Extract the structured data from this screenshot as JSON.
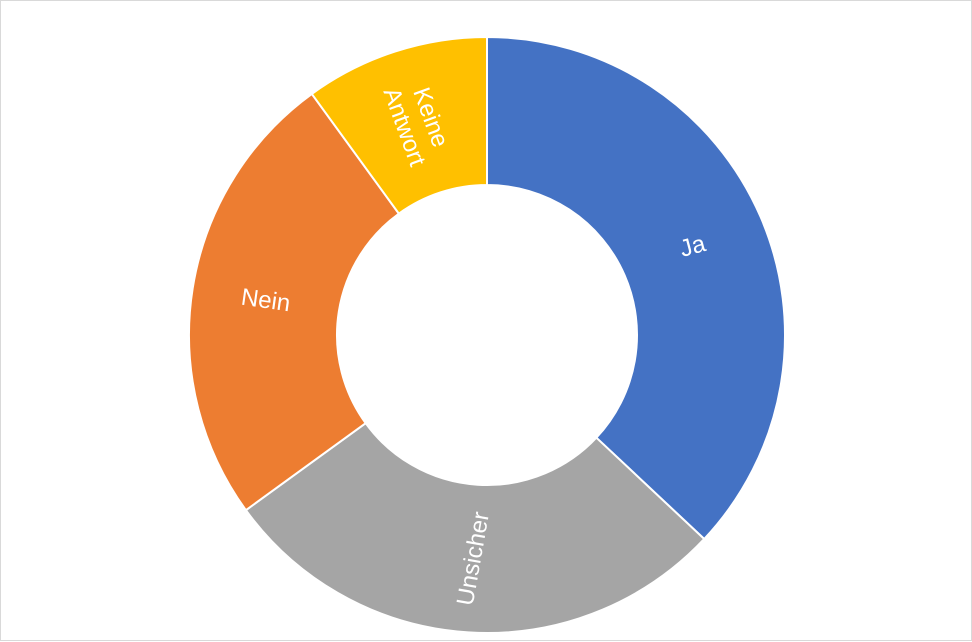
{
  "chart_data": {
    "type": "pie",
    "variant": "donut",
    "title": "",
    "legend": "none",
    "start_angle_deg": 0,
    "direction": "clockwise",
    "slices": [
      {
        "label": "Ja",
        "value": 37,
        "color": "#4472C4"
      },
      {
        "label": "Unsicher",
        "value": 28,
        "color": "#A5A5A5"
      },
      {
        "label": "Nein",
        "value": 25,
        "color": "#ED7D31"
      },
      {
        "label": "Keine Antwort",
        "value": 10,
        "color": "#FFC000"
      }
    ]
  }
}
